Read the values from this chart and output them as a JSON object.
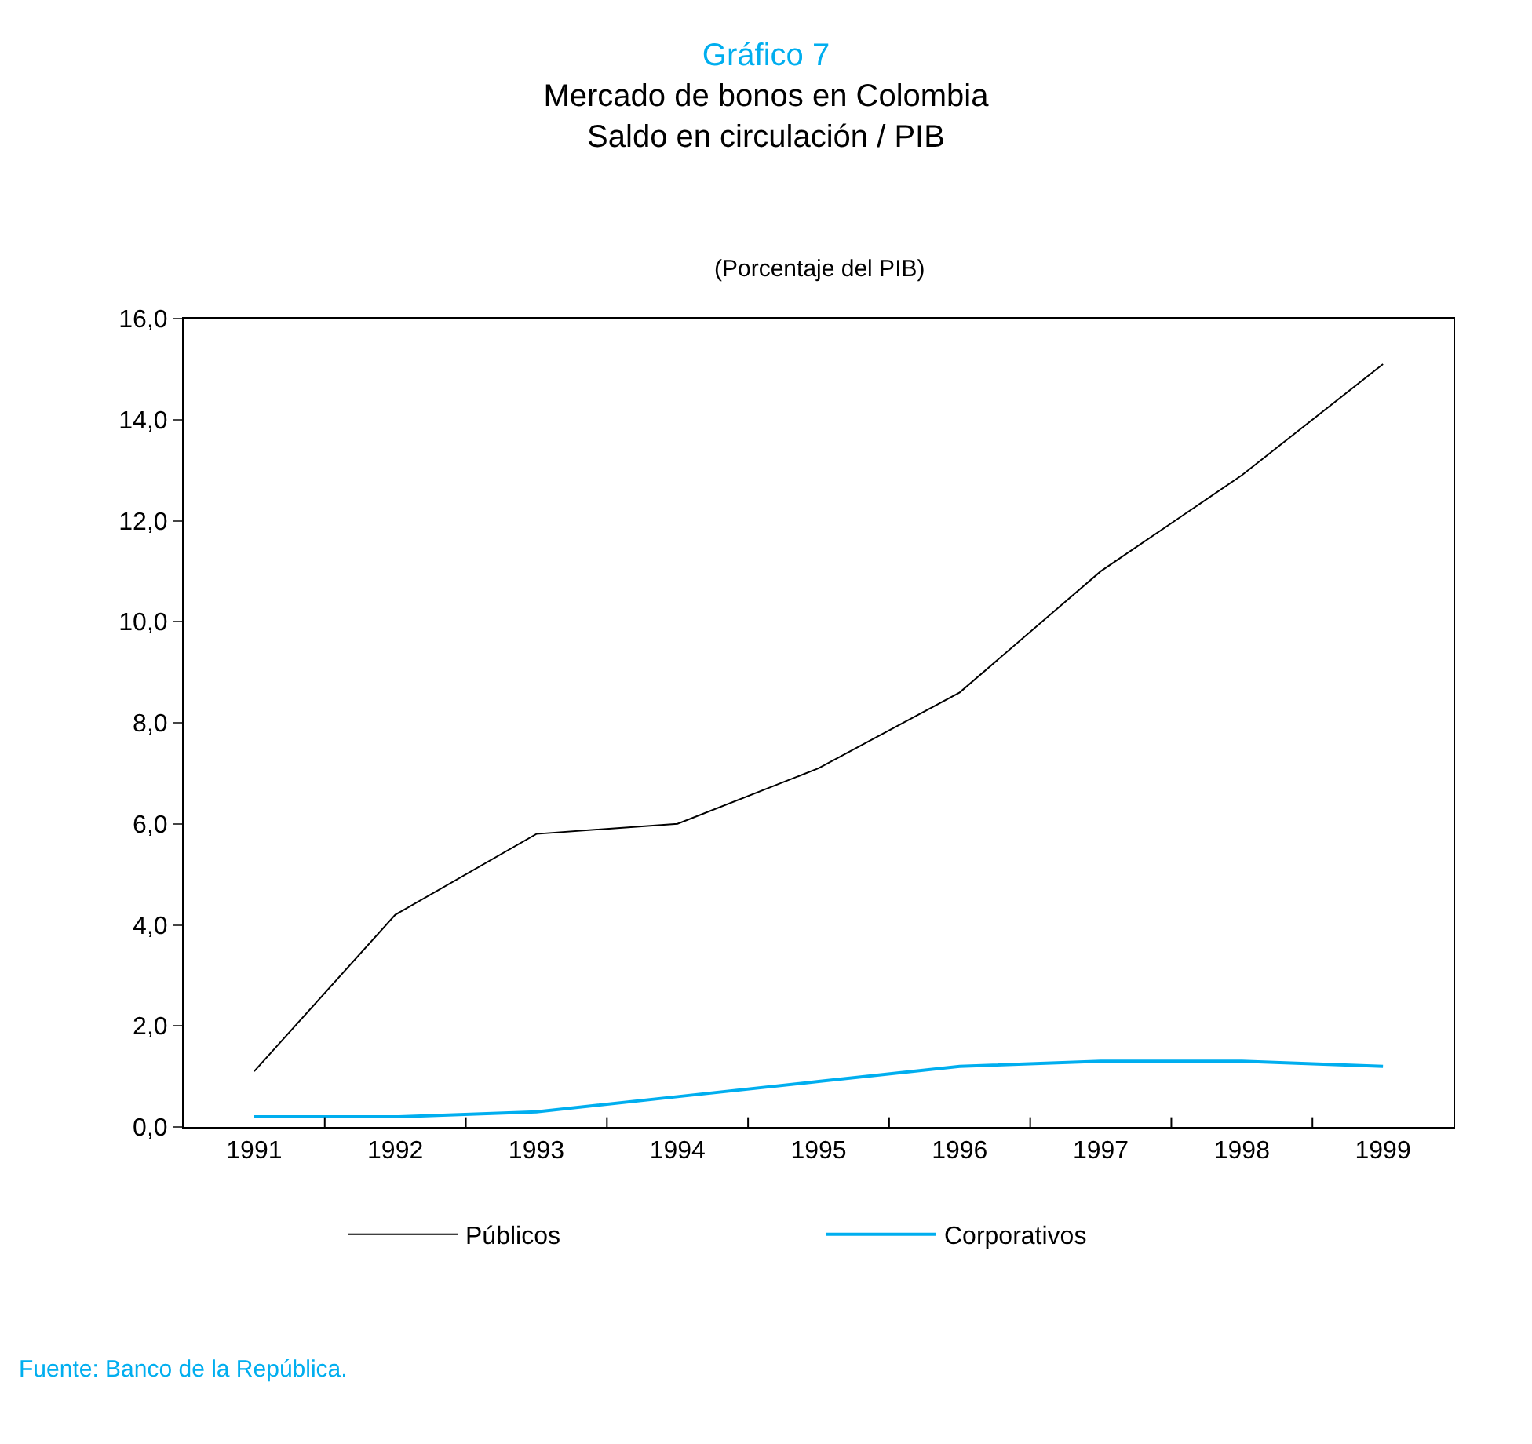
{
  "chart_data": {
    "type": "line",
    "title": "Gráfico 7",
    "subtitle": "Mercado de bonos en Colombia\nSaldo en circulación / PIB",
    "annotations": [
      "(Porcentaje del PIB)",
      "Fuente: Banco de la República."
    ],
    "categories": [
      "1991",
      "1992",
      "1993",
      "1994",
      "1995",
      "1996",
      "1997",
      "1998",
      "1999"
    ],
    "series": [
      {
        "name": "Públicos",
        "color": "#000000",
        "values": [
          1.1,
          4.2,
          5.8,
          6.0,
          7.1,
          8.6,
          11.0,
          12.9,
          15.1
        ]
      },
      {
        "name": "Corporativos",
        "color": "#00aeef",
        "values": [
          0.2,
          0.2,
          0.3,
          0.6,
          0.9,
          1.2,
          1.3,
          1.3,
          1.2
        ]
      }
    ],
    "ylim": [
      0,
      16
    ],
    "yticks": [
      {
        "value": 0,
        "label": "0,0"
      },
      {
        "value": 2,
        "label": "2,0"
      },
      {
        "value": 4,
        "label": "4,0"
      },
      {
        "value": 6,
        "label": "6,0"
      },
      {
        "value": 8,
        "label": "8,0"
      },
      {
        "value": 10,
        "label": "10,0"
      },
      {
        "value": 12,
        "label": "12,0"
      },
      {
        "value": 14,
        "label": "14,0"
      },
      {
        "value": 16,
        "label": "16,0"
      }
    ],
    "legend": "bottom",
    "marker": "none",
    "line_style": "solid"
  }
}
